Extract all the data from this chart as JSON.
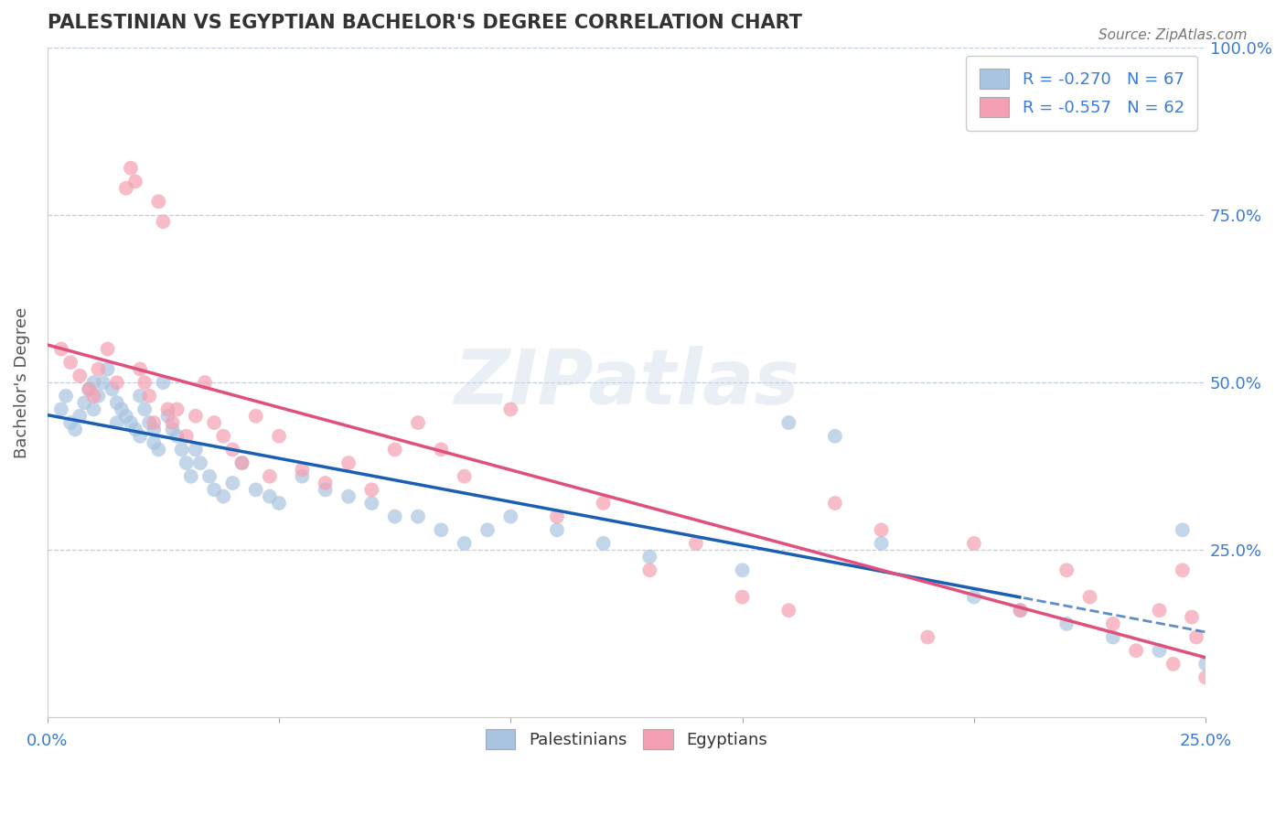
{
  "title": "PALESTINIAN VS EGYPTIAN BACHELOR'S DEGREE CORRELATION CHART",
  "source": "Source: ZipAtlas.com",
  "ylabel": "Bachelor's Degree",
  "xlim": [
    0.0,
    0.25
  ],
  "ylim": [
    0.0,
    1.0
  ],
  "xticks": [
    0.0,
    0.05,
    0.1,
    0.15,
    0.2,
    0.25
  ],
  "xtick_labels": [
    "0.0%",
    "",
    "",
    "",
    "",
    "25.0%"
  ],
  "yticks": [
    0.0,
    0.25,
    0.5,
    0.75,
    1.0
  ],
  "ytick_labels": [
    "",
    "25.0%",
    "50.0%",
    "75.0%",
    "100.0%"
  ],
  "blue_R": -0.27,
  "blue_N": 67,
  "pink_R": -0.557,
  "pink_N": 62,
  "blue_color": "#a8c4e0",
  "pink_color": "#f4a0b0",
  "blue_line_color": "#1a5fb4",
  "pink_line_color": "#e0507a",
  "label_color": "#3a7bd5",
  "background_color": "#ffffff",
  "watermark": "ZIPatlas",
  "blue_scatter_x": [
    0.003,
    0.004,
    0.005,
    0.006,
    0.007,
    0.008,
    0.009,
    0.01,
    0.01,
    0.011,
    0.012,
    0.013,
    0.014,
    0.015,
    0.015,
    0.016,
    0.017,
    0.018,
    0.019,
    0.02,
    0.02,
    0.021,
    0.022,
    0.023,
    0.023,
    0.024,
    0.025,
    0.026,
    0.027,
    0.028,
    0.029,
    0.03,
    0.031,
    0.032,
    0.033,
    0.035,
    0.036,
    0.038,
    0.04,
    0.042,
    0.045,
    0.048,
    0.05,
    0.055,
    0.06,
    0.065,
    0.07,
    0.075,
    0.08,
    0.085,
    0.09,
    0.095,
    0.1,
    0.11,
    0.12,
    0.13,
    0.15,
    0.16,
    0.17,
    0.18,
    0.2,
    0.21,
    0.22,
    0.23,
    0.24,
    0.245,
    0.25
  ],
  "blue_scatter_y": [
    0.46,
    0.48,
    0.44,
    0.43,
    0.45,
    0.47,
    0.49,
    0.5,
    0.46,
    0.48,
    0.5,
    0.52,
    0.49,
    0.47,
    0.44,
    0.46,
    0.45,
    0.44,
    0.43,
    0.42,
    0.48,
    0.46,
    0.44,
    0.43,
    0.41,
    0.4,
    0.5,
    0.45,
    0.43,
    0.42,
    0.4,
    0.38,
    0.36,
    0.4,
    0.38,
    0.36,
    0.34,
    0.33,
    0.35,
    0.38,
    0.34,
    0.33,
    0.32,
    0.36,
    0.34,
    0.33,
    0.32,
    0.3,
    0.3,
    0.28,
    0.26,
    0.28,
    0.3,
    0.28,
    0.26,
    0.24,
    0.22,
    0.44,
    0.42,
    0.26,
    0.18,
    0.16,
    0.14,
    0.12,
    0.1,
    0.28,
    0.08
  ],
  "pink_scatter_x": [
    0.003,
    0.005,
    0.007,
    0.009,
    0.01,
    0.011,
    0.013,
    0.015,
    0.017,
    0.018,
    0.019,
    0.02,
    0.021,
    0.022,
    0.023,
    0.024,
    0.025,
    0.026,
    0.027,
    0.028,
    0.03,
    0.032,
    0.034,
    0.036,
    0.038,
    0.04,
    0.042,
    0.045,
    0.048,
    0.05,
    0.055,
    0.06,
    0.065,
    0.07,
    0.075,
    0.08,
    0.085,
    0.09,
    0.1,
    0.11,
    0.12,
    0.13,
    0.14,
    0.15,
    0.16,
    0.17,
    0.18,
    0.19,
    0.2,
    0.21,
    0.22,
    0.225,
    0.23,
    0.235,
    0.24,
    0.243,
    0.245,
    0.247,
    0.248,
    0.25,
    0.252,
    0.255
  ],
  "pink_scatter_y": [
    0.55,
    0.53,
    0.51,
    0.49,
    0.48,
    0.52,
    0.55,
    0.5,
    0.79,
    0.82,
    0.8,
    0.52,
    0.5,
    0.48,
    0.44,
    0.77,
    0.74,
    0.46,
    0.44,
    0.46,
    0.42,
    0.45,
    0.5,
    0.44,
    0.42,
    0.4,
    0.38,
    0.45,
    0.36,
    0.42,
    0.37,
    0.35,
    0.38,
    0.34,
    0.4,
    0.44,
    0.4,
    0.36,
    0.46,
    0.3,
    0.32,
    0.22,
    0.26,
    0.18,
    0.16,
    0.32,
    0.28,
    0.12,
    0.26,
    0.16,
    0.22,
    0.18,
    0.14,
    0.1,
    0.16,
    0.08,
    0.22,
    0.15,
    0.12,
    0.06,
    0.04,
    0.02
  ]
}
